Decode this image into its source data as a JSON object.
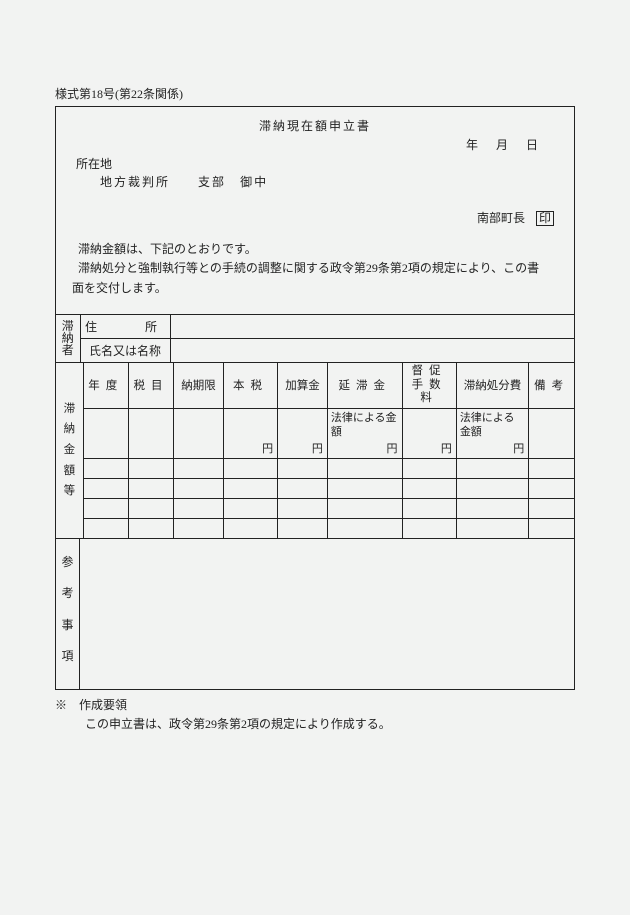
{
  "form_ref": "様式第18号(第22条関係)",
  "title": "滞納現在額申立書",
  "date": {
    "year": "年",
    "month": "月",
    "day": "日"
  },
  "addressee": {
    "location_label": "所在地",
    "court": "地方裁判所",
    "branch": "支部",
    "onchu": "御中"
  },
  "issuer": {
    "mayor": "南部町長",
    "seal": "印"
  },
  "body": {
    "line1": "滞納金額は、下記のとおりです。",
    "line2": "滞納処分と強制執行等との手続の調整に関する政令第29条第2項の規定により、この書",
    "line3": "面を交付します。"
  },
  "obligor": {
    "group_label": "滞納者",
    "addr_label": "住　　所",
    "name_label": "氏名又は名称",
    "addr_value": "",
    "name_value": ""
  },
  "grid": {
    "group_label": "滞納金額等",
    "headers": {
      "year": "年度",
      "tax": "税目",
      "due": "納期限",
      "main": "本税",
      "add": "加算金",
      "arrear": "延滞金",
      "fee_l1": "督促",
      "fee_l2": "手数料",
      "disp": "滞納処分費",
      "remark": "備考"
    },
    "law_note": "法律による金額",
    "yen": "円",
    "rows": [
      {
        "year": "",
        "tax": "",
        "due": "",
        "main": "",
        "add": "",
        "arrear": "",
        "fee": "",
        "disp": "",
        "remark": ""
      },
      {
        "year": "",
        "tax": "",
        "due": "",
        "main": "",
        "add": "",
        "arrear": "",
        "fee": "",
        "disp": "",
        "remark": ""
      },
      {
        "year": "",
        "tax": "",
        "due": "",
        "main": "",
        "add": "",
        "arrear": "",
        "fee": "",
        "disp": "",
        "remark": ""
      },
      {
        "year": "",
        "tax": "",
        "due": "",
        "main": "",
        "add": "",
        "arrear": "",
        "fee": "",
        "disp": "",
        "remark": ""
      },
      {
        "year": "",
        "tax": "",
        "due": "",
        "main": "",
        "add": "",
        "arrear": "",
        "fee": "",
        "disp": "",
        "remark": ""
      }
    ]
  },
  "reference": {
    "label": "参考事項",
    "body": ""
  },
  "footnote": {
    "l1": "※　作成要領",
    "l2": "この申立書は、政令第29条第2項の規定により作成する。"
  },
  "style": {
    "bg": "#f2f3f2",
    "border": "#222222",
    "text": "#222222"
  }
}
